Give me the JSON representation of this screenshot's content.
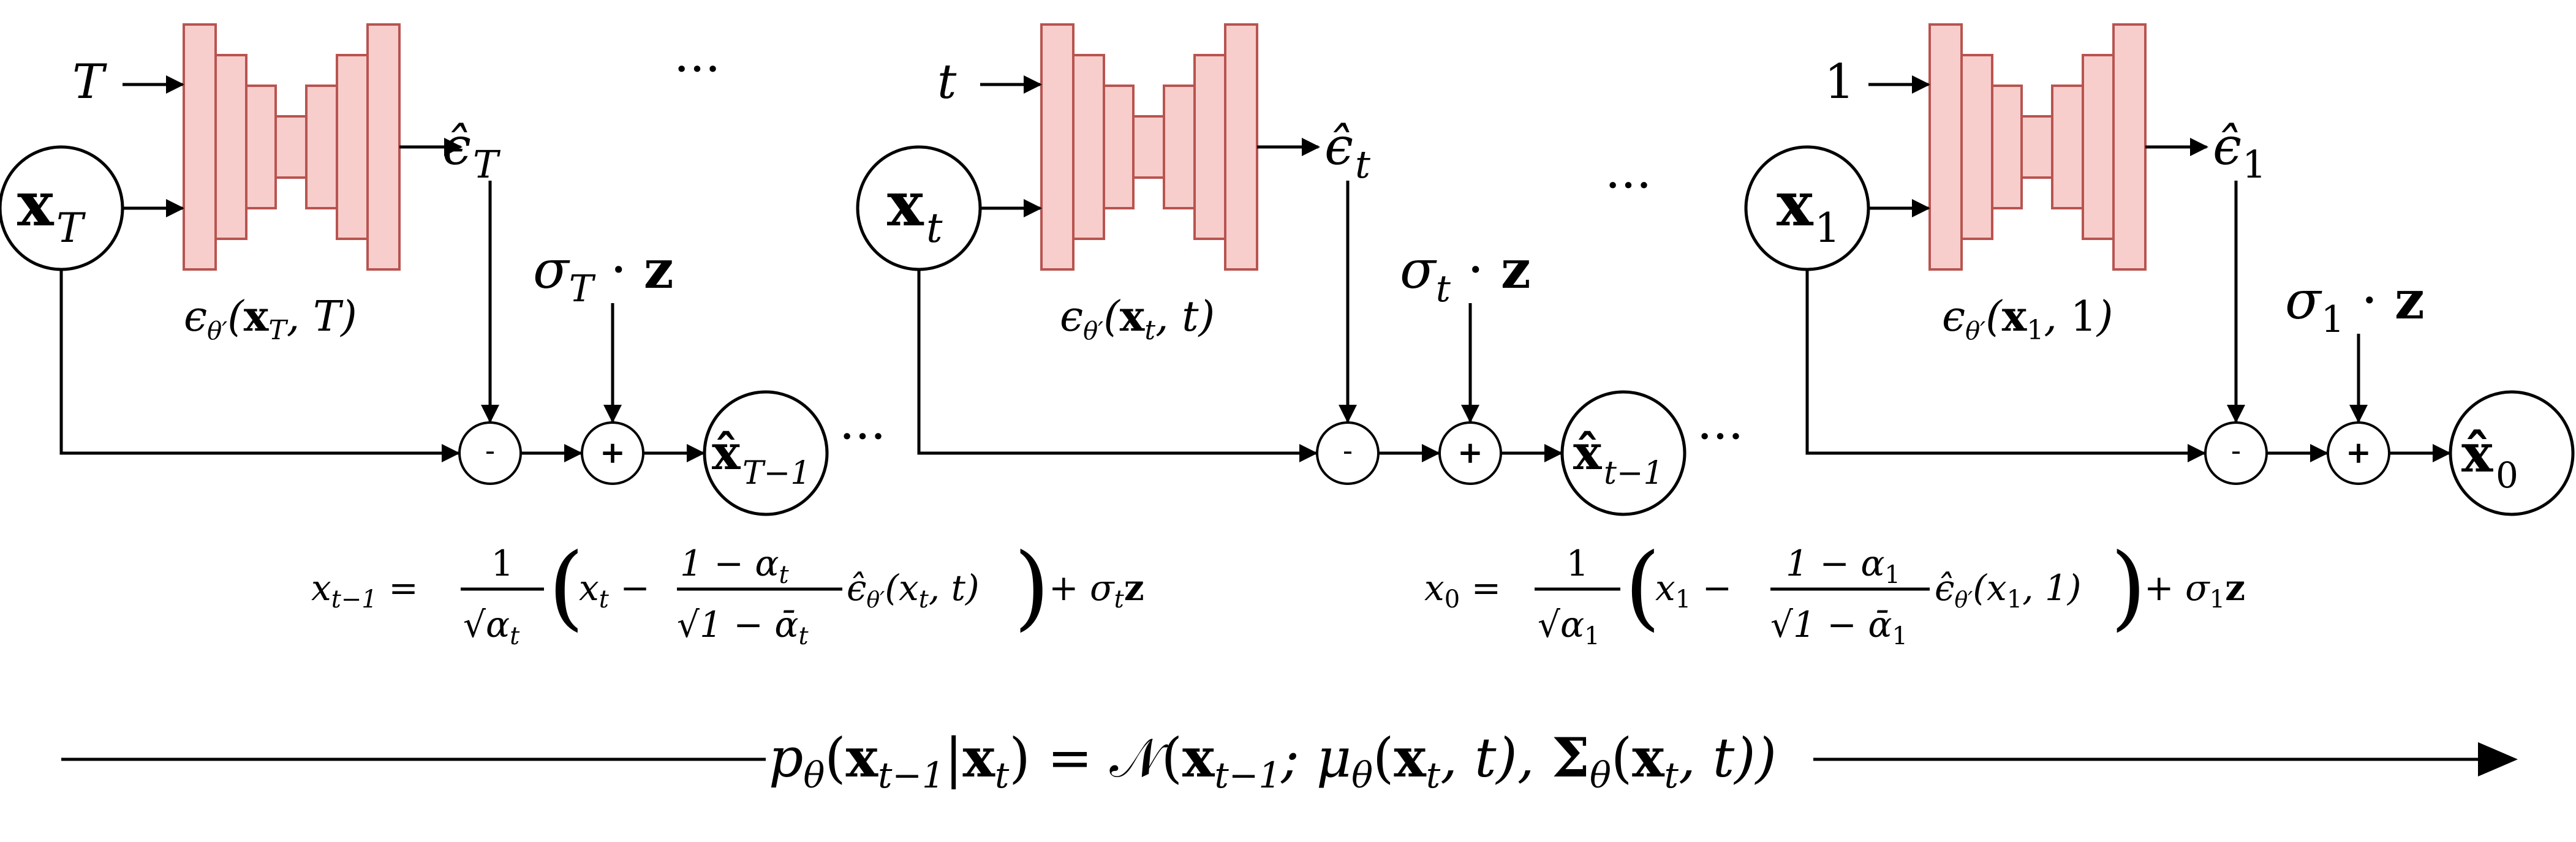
{
  "colors": {
    "unet_fill": "#f8cecc",
    "unet_stroke": "#b85450",
    "line": "#000000"
  },
  "blocks": [
    {
      "time_input": "T",
      "x_var": "x",
      "x_sub": "T",
      "eps_out_sub": "T",
      "net_label_arg": "T",
      "noise_sub": "T",
      "out_var": "x̂",
      "out_sub": "T−1"
    },
    {
      "time_input": "t",
      "x_var": "x",
      "x_sub": "t",
      "eps_out_sub": "t",
      "net_label_arg": "t",
      "noise_sub": "t",
      "out_var": "x̂",
      "out_sub": "t−1"
    },
    {
      "time_input": "1",
      "x_var": "x",
      "x_sub": "1",
      "eps_out_sub": "1",
      "net_label_arg": "1",
      "noise_sub": "1",
      "out_var": "x̂",
      "out_sub": "0"
    }
  ],
  "symbols": {
    "eps": "ϵ",
    "eps_hat": "ϵ̂",
    "theta_prime": "θ′",
    "sigma": "σ",
    "dot": "·",
    "z": "z",
    "minus": "-",
    "plus": "+",
    "ellipsis": "···"
  },
  "equations": {
    "eq1_lhs": "x",
    "eq1_lhs_sub": "t−1",
    "eq1_frac1_num": "1",
    "eq1_frac1_den": "√α",
    "eq1_frac1_den_sub": "t",
    "eq1_x": "x",
    "eq1_x_sub": "t",
    "eq1_frac2_num": "1 − α",
    "eq1_frac2_num_sub": "t",
    "eq1_frac2_den": "√1 − ᾱ",
    "eq1_frac2_den_sub": "t",
    "eq1_eps_arg": "(x",
    "eq1_eps_arg_sub": "t",
    "eq1_eps_arg_tail": ", t)",
    "eq1_noise": "+ σ",
    "eq1_noise_sub": "t",
    "eq1_noise_z": "z",
    "eq2_lhs": "x",
    "eq2_lhs_sub": "0",
    "eq2_frac1_num": "1",
    "eq2_frac1_den": "√α",
    "eq2_frac1_den_sub": "1",
    "eq2_x": "x",
    "eq2_x_sub": "1",
    "eq2_frac2_num": "1 − α",
    "eq2_frac2_num_sub": "1",
    "eq2_frac2_den": "√1 − ᾱ",
    "eq2_frac2_den_sub": "1",
    "eq2_eps_arg": "(x",
    "eq2_eps_arg_sub": "1",
    "eq2_eps_arg_tail": ", 1)",
    "eq2_noise": "+ σ",
    "eq2_noise_sub": "1",
    "eq2_noise_z": "z",
    "main_p": "p",
    "main_p_sub": "θ",
    "main_lhs_args": "(x",
    "main_lhs_args_sub": "t−1",
    "main_lhs_bar": "|x",
    "main_lhs_bar_sub": "t",
    "main_lhs_close": ") = 𝒩(x",
    "main_N_sub": "t−1",
    "main_mu": "; μ",
    "main_mu_sub": "θ",
    "main_mu_args": "(x",
    "main_mu_args_sub": "t",
    "main_mu_tail": ", t), ",
    "main_sigma": "Σ",
    "main_sigma_sub": "θ",
    "main_sigma_args": "(x",
    "main_sigma_args_sub": "t",
    "main_sigma_tail": ", t))"
  }
}
